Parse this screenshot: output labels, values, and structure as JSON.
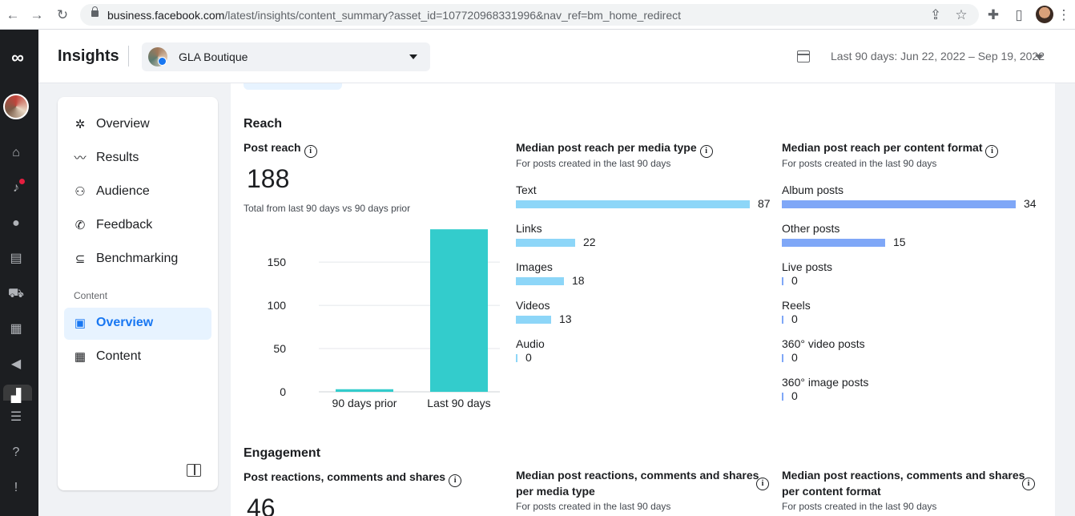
{
  "browser": {
    "url_host": "business.facebook.com",
    "url_path": "/latest/insights/content_summary?asset_id=107720968331996&nav_ref=bm_home_redirect"
  },
  "header": {
    "title": "Insights",
    "page_name": "GLA Boutique",
    "date_range": "Last 90 days: Jun 22, 2022 – Sep 19, 2022"
  },
  "sidebar": {
    "items": [
      {
        "label": "Overview",
        "icon": "overview-icon"
      },
      {
        "label": "Results",
        "icon": "results-icon"
      },
      {
        "label": "Audience",
        "icon": "audience-icon"
      },
      {
        "label": "Feedback",
        "icon": "feedback-icon"
      },
      {
        "label": "Benchmarking",
        "icon": "benchmarking-icon"
      }
    ],
    "section_label": "Content",
    "content_items": [
      {
        "label": "Overview",
        "icon": "content-overview-icon",
        "active": true
      },
      {
        "label": "Content",
        "icon": "table-icon",
        "active": false
      }
    ]
  },
  "reach": {
    "section_title": "Reach",
    "post_reach": {
      "title": "Post reach",
      "value": "188",
      "subtitle": "Total from last 90 days vs 90 days prior"
    },
    "media_type": {
      "title": "Median post reach per media type",
      "subtitle": "For posts created in the last 90 days",
      "color": "#8dd6f8",
      "max": 87,
      "rows": [
        {
          "label": "Text",
          "value": 87
        },
        {
          "label": "Links",
          "value": 22
        },
        {
          "label": "Images",
          "value": 18
        },
        {
          "label": "Videos",
          "value": 13
        },
        {
          "label": "Audio",
          "value": 0
        }
      ]
    },
    "content_format": {
      "title": "Median post reach per content format",
      "subtitle": "For posts created in the last 90 days",
      "color": "#7fa7f7",
      "max": 34,
      "rows": [
        {
          "label": "Album posts",
          "value": 34
        },
        {
          "label": "Other posts",
          "value": 15
        },
        {
          "label": "Live posts",
          "value": 0
        },
        {
          "label": "Reels",
          "value": 0
        },
        {
          "label": "360° video posts",
          "value": 0
        },
        {
          "label": "360° image posts",
          "value": 0
        }
      ]
    }
  },
  "engagement": {
    "section_title": "Engagement",
    "card1_title": "Post reactions, comments and shares",
    "card1_value": "46",
    "card2_title_line1": "Median post reactions, comments and shares",
    "card2_title_line2": "per media type",
    "card2_subtitle": "For posts created in the last 90 days",
    "card3_title_line1": "Median post reactions, comments and shares",
    "card3_title_line2": "per content format",
    "card3_subtitle": "For posts created in the last 90 days"
  },
  "chart_data": {
    "type": "bar",
    "categories": [
      "90 days prior",
      "Last 90 days"
    ],
    "values": [
      3,
      188
    ],
    "yticks": [
      0,
      50,
      100,
      150
    ],
    "ylim": [
      0,
      190
    ],
    "color": "#33cccc",
    "grid": true
  }
}
